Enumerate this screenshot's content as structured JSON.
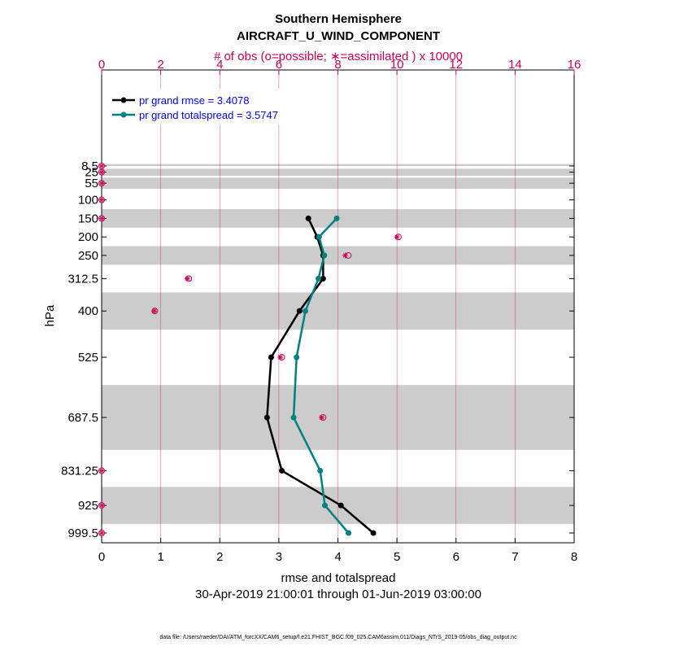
{
  "chart_data": {
    "type": "line",
    "title": "Southern Hemisphere",
    "subtitle": "AIRCRAFT_U_WIND_COMPONENT",
    "top_axis_label": "# of obs (o=possible; ∗=assimilated ) x 10000",
    "xlabel": "rmse and totalspread",
    "ylabel": "hPa",
    "date_range": "30-Apr-2019 21:00:01 through 01-Jun-2019 03:00:00",
    "footnote": "data file: /Users/raeder/DAI/ATM_forcXX/CAM6_setup/f.e21.FHIST_BGC.f09_025.CAM6assim.011/Diags_NTrS_2019-05/obs_diag_output.nc",
    "xlim": [
      0,
      8
    ],
    "xticks": [
      "0",
      "1",
      "2",
      "3",
      "4",
      "5",
      "6",
      "7",
      "8"
    ],
    "top_xlim": [
      0,
      16
    ],
    "top_xticks": [
      "0",
      "2",
      "4",
      "6",
      "8",
      "10",
      "12",
      "14",
      "16"
    ],
    "y_levels": [
      8.5,
      25,
      55,
      100,
      150,
      200,
      250,
      312.5,
      400,
      525,
      687.5,
      831.25,
      925,
      999.5
    ],
    "y_ticks": [
      "8.5",
      "25",
      "55",
      "100",
      "150",
      "200",
      "250",
      "312.5",
      "400",
      "525",
      "687.5",
      "831.25",
      "925",
      "999.5"
    ],
    "grid": "vertical lines only",
    "legend_placement": "top-left",
    "shaded_bands": [
      [
        3,
        8.5
      ],
      [
        16,
        35
      ],
      [
        40,
        70
      ],
      [
        125,
        175
      ],
      [
        225,
        275
      ],
      [
        350,
        450
      ],
      [
        600,
        775
      ],
      [
        875,
        975
      ]
    ],
    "series": [
      {
        "name": "pr grand rmse = 3.4078",
        "color": "#000000",
        "levels": [
          150,
          200,
          250,
          312.5,
          400,
          525,
          687.5,
          831.25,
          925,
          999.5
        ],
        "values": [
          3.5,
          3.65,
          3.75,
          3.75,
          3.35,
          2.87,
          2.8,
          3.05,
          4.05,
          4.6
        ]
      },
      {
        "name": "pr grand totalspread = 3.5747",
        "color": "#008080",
        "levels": [
          150,
          200,
          250,
          312.5,
          400,
          525,
          687.5,
          831.25,
          925,
          999.5
        ],
        "values": [
          3.98,
          3.68,
          3.77,
          3.67,
          3.45,
          3.3,
          3.25,
          3.7,
          3.78,
          4.18
        ]
      }
    ],
    "obs_counts": {
      "color": "#cc0055",
      "levels": [
        8.5,
        25,
        55,
        100,
        150,
        200,
        250,
        312.5,
        400,
        525,
        687.5,
        831.25,
        925,
        999.5
      ],
      "possible": [
        0.0,
        0.0,
        0.0,
        0.0,
        0.0,
        10.05,
        8.35,
        2.95,
        1.8,
        6.1,
        7.5,
        0.0,
        0.0,
        0.0
      ],
      "assimilated": [
        0.0,
        0.0,
        0.0,
        0.0,
        0.0,
        10.0,
        8.25,
        2.9,
        1.78,
        6.05,
        7.45,
        0.0,
        0.0,
        0.0
      ]
    }
  }
}
